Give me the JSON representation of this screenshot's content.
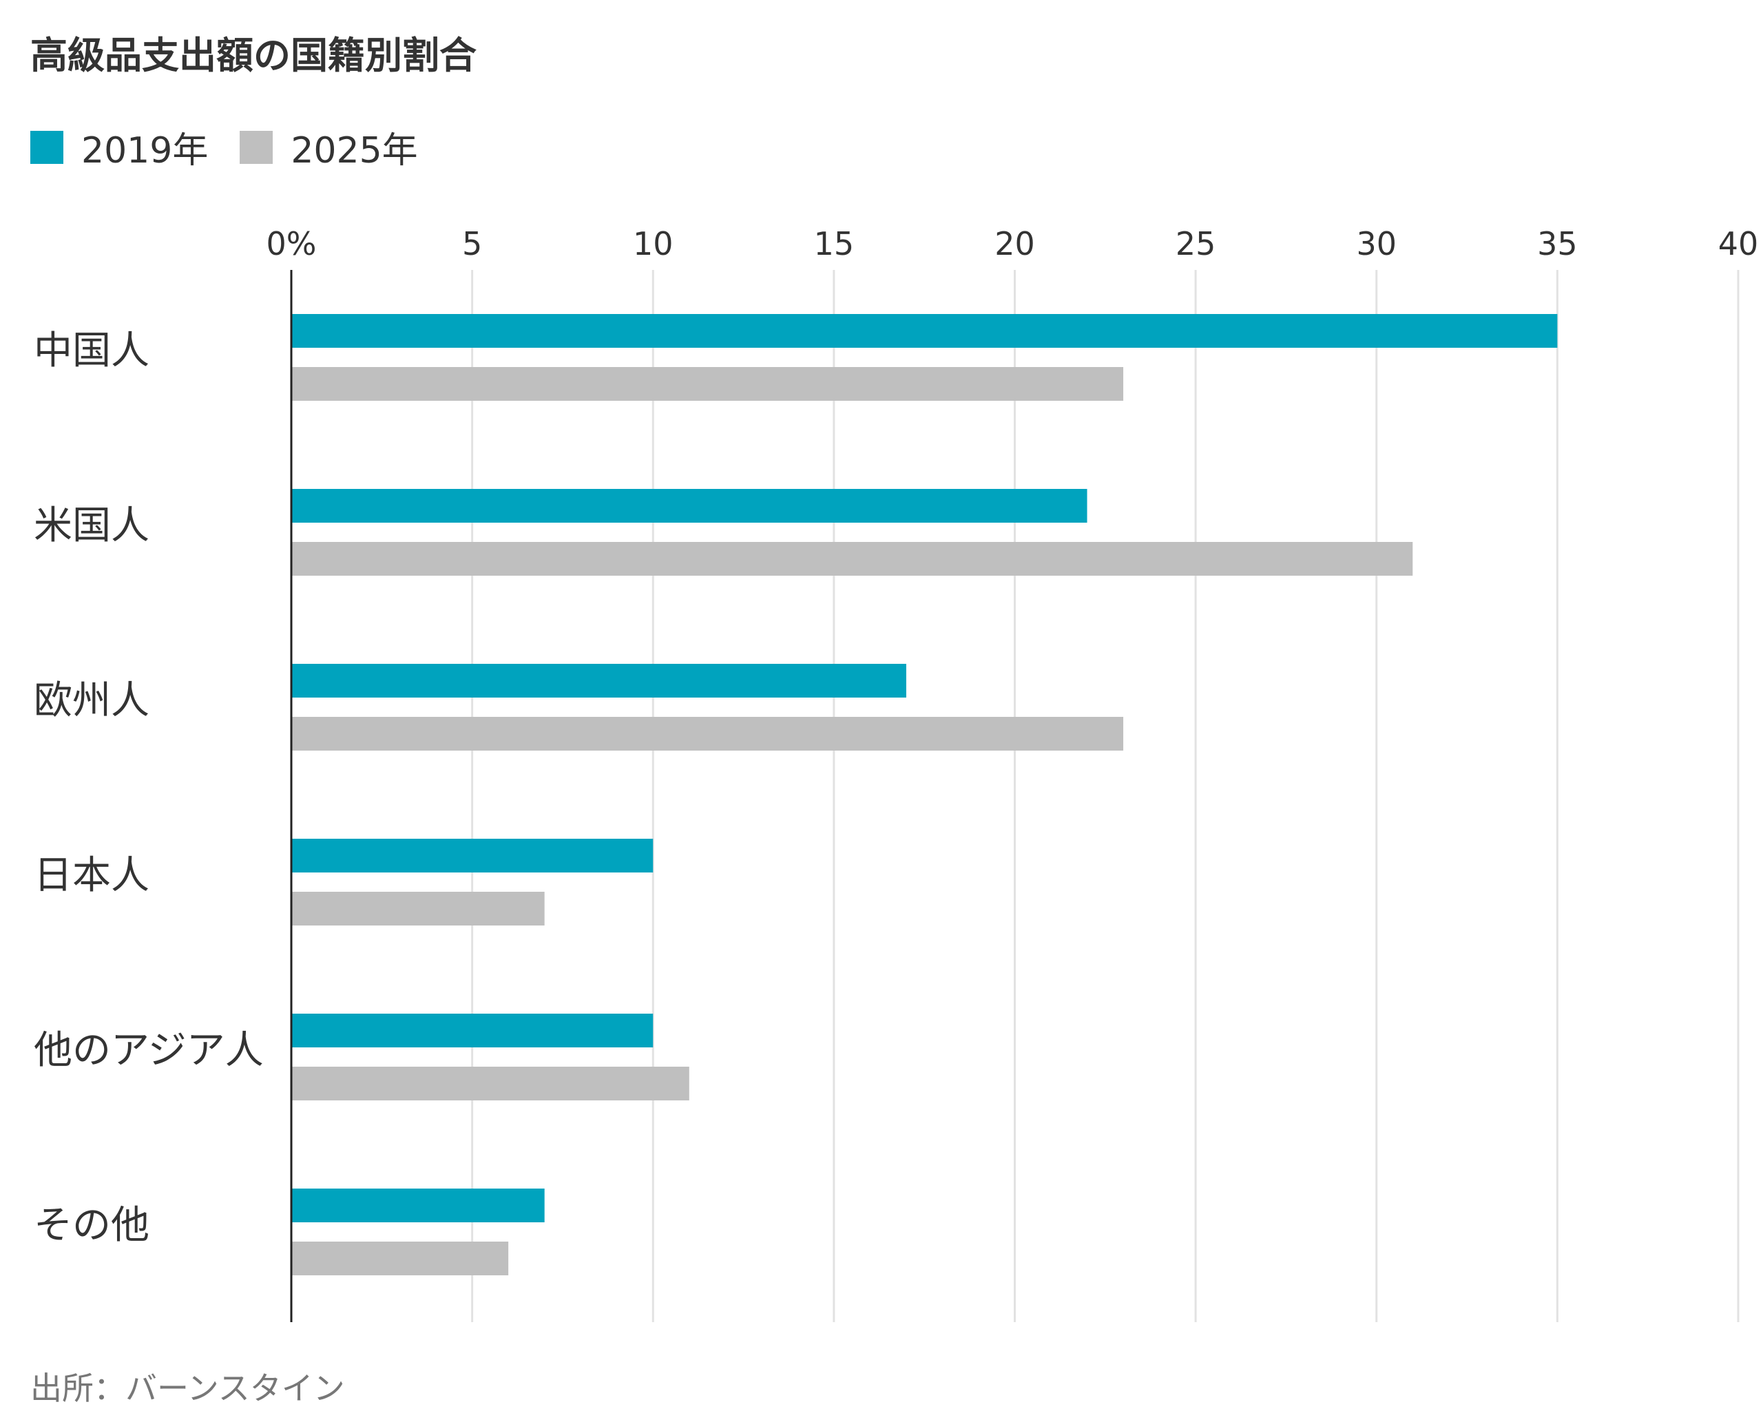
{
  "title": "高級品支出額の国籍別割合",
  "source": "出所：バーンスタイン",
  "colors": {
    "2019": "#00A3BE",
    "2025": "#BFBFBF",
    "axis": "#222222",
    "grid": "#E2E2E2"
  },
  "chart_data": {
    "type": "bar",
    "orientation": "horizontal",
    "title": "高級品支出額の国籍別割合",
    "categories": [
      "中国人",
      "米国人",
      "欧州人",
      "日本人",
      "他のアジア人",
      "その他"
    ],
    "series": [
      {
        "name": "2019年",
        "values": [
          35,
          22,
          17,
          10,
          10,
          7
        ]
      },
      {
        "name": "2025年",
        "values": [
          23,
          31,
          23,
          7,
          11,
          6
        ]
      }
    ],
    "xlim": [
      0,
      40
    ],
    "xticks": [
      0,
      5,
      10,
      15,
      20,
      25,
      30,
      35,
      40
    ],
    "xtick_labels": [
      "0%",
      "5",
      "10",
      "15",
      "20",
      "25",
      "30",
      "35",
      "40"
    ],
    "xlabel": "",
    "ylabel": "",
    "grid": true,
    "legend_position": "top-left"
  }
}
